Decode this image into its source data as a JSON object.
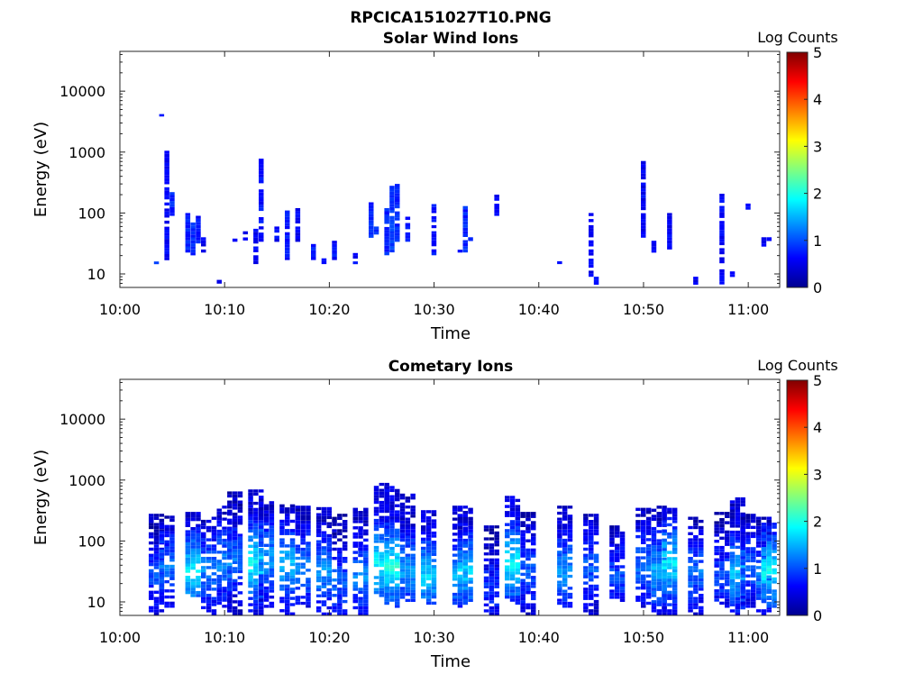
{
  "figure_title": "RPCICA151027T10.PNG",
  "colors": {
    "axis": "#262626",
    "background": "#ffffff"
  },
  "colormap": "jet",
  "chart_data": [
    {
      "type": "heatmap",
      "title": "Solar Wind Ions",
      "xlabel": "Time",
      "ylabel": "Energy (eV)",
      "x_range": [
        "10:00",
        "11:03"
      ],
      "y_scale": "log",
      "ylim": [
        6,
        45000
      ],
      "x_ticks": [
        "10:00",
        "10:10",
        "10:20",
        "10:30",
        "10:40",
        "10:50",
        "11:00"
      ],
      "y_ticks": [
        "10",
        "100",
        "1000",
        "10000"
      ],
      "colorbar": {
        "label": "Log Counts",
        "min": 0,
        "max": 5,
        "ticks": [
          "0",
          "1",
          "2",
          "3",
          "4",
          "5"
        ]
      },
      "series": [
        {
          "t": [
            "10:03:30",
            "10:04:00",
            "10:04:30",
            "10:05:00",
            "10:06:30",
            "10:07:00",
            "10:07:30",
            "10:08:00",
            "10:09:30",
            "10:11:00",
            "10:12:00",
            "10:13:00",
            "10:13:30",
            "10:15:00",
            "10:16:00",
            "10:17:00",
            "10:18:30",
            "10:19:30",
            "10:20:30",
            "10:22:30",
            "10:24:00",
            "10:24:30",
            "10:25:30",
            "10:26:00",
            "10:26:30",
            "10:27:30",
            "10:30:00",
            "10:32:30",
            "10:33:00",
            "10:33:30",
            "10:36:00",
            "10:42:00",
            "10:45:00",
            "10:45:30",
            "10:50:00",
            "10:51:00",
            "10:52:30",
            "10:55:00",
            "10:57:30",
            "10:58:30",
            "11:00:00",
            "11:01:30",
            "11:02:00"
          ],
          "emin": [
            13,
            3500,
            15,
            80,
            20,
            18,
            25,
            20,
            6,
            30,
            25,
            13,
            30,
            30,
            15,
            30,
            15,
            13,
            15,
            13,
            35,
            40,
            18,
            18,
            30,
            30,
            18,
            18,
            20,
            30,
            80,
            13,
            8,
            6,
            35,
            20,
            20,
            6,
            6,
            8,
            90,
            25,
            30
          ],
          "emax": [
            16,
            3500,
            1050,
            220,
            100,
            70,
            90,
            40,
            8,
            38,
            50,
            55,
            780,
            60,
            110,
            120,
            35,
            18,
            35,
            22,
            150,
            60,
            120,
            280,
            300,
            110,
            140,
            25,
            130,
            40,
            200,
            18,
            100,
            9,
            800,
            35,
            100,
            9,
            260,
            11,
            180,
            40,
            40
          ],
          "level": [
            1,
            0.8,
            0.6,
            0.8,
            0.8,
            0.8,
            0.7,
            0.6,
            0.6,
            0.7,
            0.6,
            0.6,
            0.7,
            0.6,
            0.7,
            0.6,
            0.8,
            0.8,
            0.7,
            0.6,
            0.8,
            0.8,
            0.8,
            0.9,
            0.8,
            0.7,
            0.7,
            0.6,
            0.8,
            0.7,
            0.6,
            0.6,
            0.6,
            0.6,
            0.6,
            0.6,
            0.6,
            0.6,
            0.6,
            0.6,
            0.6,
            0.6,
            0.6
          ]
        }
      ]
    },
    {
      "type": "heatmap",
      "title": "Cometary Ions",
      "xlabel": "Time",
      "ylabel": "Energy (eV)",
      "x_range": [
        "10:00",
        "11:03"
      ],
      "y_scale": "log",
      "ylim": [
        6,
        45000
      ],
      "x_ticks": [
        "10:00",
        "10:10",
        "10:20",
        "10:30",
        "10:40",
        "10:50",
        "11:00"
      ],
      "y_ticks": [
        "10",
        "100",
        "1000",
        "10000"
      ],
      "colorbar": {
        "label": "Log Counts",
        "min": 0,
        "max": 5,
        "ticks": [
          "0",
          "1",
          "2",
          "3",
          "4",
          "5"
        ]
      },
      "series": [
        {
          "t": [
            "10:03:30",
            "10:04:30",
            "10:07:00",
            "10:08:30",
            "10:10:00",
            "10:11:00",
            "10:13:00",
            "10:14:00",
            "10:16:00",
            "10:17:30",
            "10:19:30",
            "10:21:00",
            "10:23:00",
            "10:25:00",
            "10:26:00",
            "10:27:30",
            "10:29:30",
            "10:32:30",
            "10:33:00",
            "10:35:30",
            "10:37:30",
            "10:39:00",
            "10:42:30",
            "10:45:00",
            "10:47:30",
            "10:50:00",
            "10:51:30",
            "10:52:30",
            "10:55:00",
            "10:57:30",
            "10:59:00",
            "11:00:00",
            "11:01:30",
            "11:02:00"
          ],
          "emin": [
            6,
            8,
            12,
            6,
            8,
            6,
            6,
            8,
            6,
            8,
            6,
            6,
            6,
            12,
            8,
            10,
            9,
            8,
            10,
            6,
            9,
            6,
            8,
            6,
            10,
            8,
            6,
            6,
            6,
            8,
            6,
            8,
            6,
            8
          ],
          "emax": [
            280,
            260,
            300,
            250,
            380,
            650,
            700,
            450,
            400,
            380,
            360,
            280,
            350,
            900,
            800,
            600,
            320,
            380,
            350,
            180,
            550,
            300,
            380,
            280,
            180,
            350,
            380,
            350,
            250,
            300,
            520,
            280,
            250,
            200
          ],
          "peak": [
            25,
            35,
            30,
            30,
            40,
            45,
            40,
            50,
            40,
            35,
            30,
            20,
            25,
            40,
            35,
            30,
            25,
            25,
            30,
            15,
            40,
            30,
            30,
            35,
            25,
            35,
            30,
            40,
            30,
            25,
            30,
            35,
            25,
            30
          ],
          "level": [
            1.0,
            1.2,
            1.8,
            1.3,
            1.3,
            1.2,
            1.9,
            1.4,
            1.6,
            1.3,
            1.4,
            1.1,
            1.3,
            1.9,
            2.0,
            1.4,
            1.7,
            1.5,
            1.7,
            0.9,
            1.9,
            1.1,
            1.4,
            1.1,
            1.0,
            1.2,
            1.5,
            1.8,
            1.2,
            1.0,
            1.6,
            1.1,
            1.3,
            1.9
          ]
        }
      ]
    }
  ]
}
